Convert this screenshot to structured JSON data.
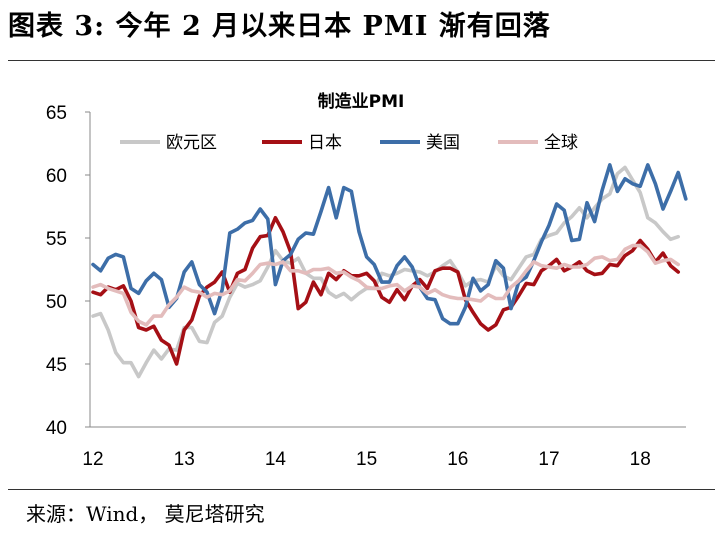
{
  "figure": {
    "title": "图表 3:  今年 2 月以来日本 PMI 渐有回落",
    "source": "来源：Wind， 莫尼塔研究"
  },
  "chart_data": {
    "type": "line",
    "title": "制造业PMI",
    "xlabel": "",
    "ylabel": "",
    "x_tick_labels": [
      "12",
      "13",
      "14",
      "15",
      "16",
      "17",
      "18"
    ],
    "x_start": "2012-01",
    "ylim": [
      40,
      65
    ],
    "y_ticks": [
      40,
      45,
      50,
      55,
      60,
      65
    ],
    "grid": false,
    "legend_position": "top",
    "series": [
      {
        "name": "欧元区",
        "color": "#c8c8c8",
        "values": [
          48.8,
          49.0,
          47.7,
          45.9,
          45.1,
          45.1,
          44.0,
          45.1,
          46.1,
          45.4,
          46.2,
          46.1,
          47.9,
          47.9,
          46.8,
          46.7,
          48.3,
          48.8,
          50.3,
          51.4,
          51.1,
          51.3,
          51.6,
          52.7,
          54.0,
          53.2,
          53.0,
          53.4,
          52.2,
          51.8,
          51.8,
          50.7,
          50.3,
          50.6,
          50.1,
          50.6,
          51.0,
          51.0,
          52.2,
          52.0,
          52.2,
          52.5,
          52.4,
          52.3,
          52.0,
          52.3,
          52.8,
          53.2,
          52.3,
          51.2,
          51.6,
          51.7,
          51.5,
          52.8,
          52.0,
          51.7,
          52.6,
          53.5,
          53.7,
          54.9,
          55.2,
          55.4,
          56.2,
          56.7,
          57.4,
          56.6,
          57.4,
          58.1,
          58.5,
          60.1,
          60.6,
          59.6,
          58.6,
          56.6,
          56.2,
          55.5,
          54.9,
          55.1
        ]
      },
      {
        "name": "日本",
        "color": "#a50f15",
        "values": [
          50.7,
          50.5,
          51.1,
          50.9,
          51.2,
          50.0,
          47.9,
          47.7,
          48.0,
          46.9,
          46.5,
          45.0,
          47.7,
          48.5,
          50.4,
          51.1,
          51.5,
          52.3,
          50.7,
          52.2,
          52.5,
          54.2,
          55.1,
          55.2,
          56.6,
          55.5,
          53.9,
          49.4,
          49.9,
          51.5,
          50.5,
          52.2,
          51.7,
          52.4,
          52.0,
          52.0,
          52.2,
          51.6,
          50.3,
          49.9,
          50.9,
          50.1,
          51.2,
          51.7,
          51.0,
          52.4,
          52.6,
          52.6,
          52.3,
          50.1,
          49.1,
          48.2,
          47.7,
          48.1,
          49.3,
          49.5,
          50.4,
          51.4,
          51.3,
          52.4,
          52.8,
          53.3,
          52.4,
          52.7,
          53.1,
          52.4,
          52.1,
          52.2,
          52.9,
          52.8,
          53.6,
          54.0,
          54.8,
          54.1,
          53.1,
          53.8,
          52.8,
          52.3
        ]
      },
      {
        "name": "美国",
        "color": "#3d6ea8",
        "values": [
          52.9,
          52.4,
          53.4,
          53.7,
          53.5,
          51.0,
          50.6,
          51.6,
          52.2,
          51.7,
          49.5,
          50.2,
          52.3,
          53.1,
          51.3,
          50.7,
          49.0,
          50.9,
          55.4,
          55.7,
          56.2,
          56.4,
          57.3,
          56.5,
          51.3,
          53.2,
          53.7,
          54.9,
          55.4,
          55.3,
          57.1,
          59.0,
          56.6,
          59.0,
          58.7,
          55.5,
          53.5,
          52.9,
          51.5,
          51.5,
          52.8,
          53.5,
          52.7,
          51.1,
          50.2,
          50.1,
          48.6,
          48.2,
          48.2,
          49.5,
          51.8,
          50.8,
          51.3,
          53.2,
          52.6,
          49.4,
          51.5,
          51.9,
          53.2,
          54.7,
          56.0,
          57.7,
          57.2,
          54.8,
          54.9,
          57.8,
          56.3,
          58.8,
          60.8,
          58.7,
          59.7,
          59.3,
          59.1,
          60.8,
          59.3,
          57.3,
          58.7,
          60.2,
          58.1
        ]
      },
      {
        "name": "全球",
        "color": "#e3bcbc",
        "values": [
          51.1,
          51.3,
          51.0,
          50.8,
          50.6,
          49.1,
          48.4,
          48.1,
          48.8,
          48.8,
          49.7,
          50.3,
          51.1,
          50.8,
          50.7,
          50.3,
          50.6,
          50.5,
          50.8,
          51.7,
          51.6,
          52.2,
          52.9,
          53.0,
          52.9,
          53.1,
          52.4,
          52.4,
          52.2,
          52.5,
          52.5,
          52.6,
          52.2,
          52.3,
          51.9,
          51.6,
          51.1,
          51.0,
          51.0,
          51.2,
          51.3,
          50.8,
          51.2,
          51.1,
          50.6,
          50.9,
          50.5,
          50.3,
          50.2,
          50.2,
          50.1,
          50.0,
          50.5,
          50.2,
          50.2,
          51.1,
          51.6,
          52.4,
          53.1,
          52.8,
          52.7,
          52.6,
          52.9,
          52.7,
          52.7,
          52.9,
          53.4,
          53.5,
          53.2,
          53.3,
          54.1,
          54.4,
          54.4,
          53.9,
          53.0,
          53.2,
          53.3,
          52.9
        ]
      }
    ]
  }
}
